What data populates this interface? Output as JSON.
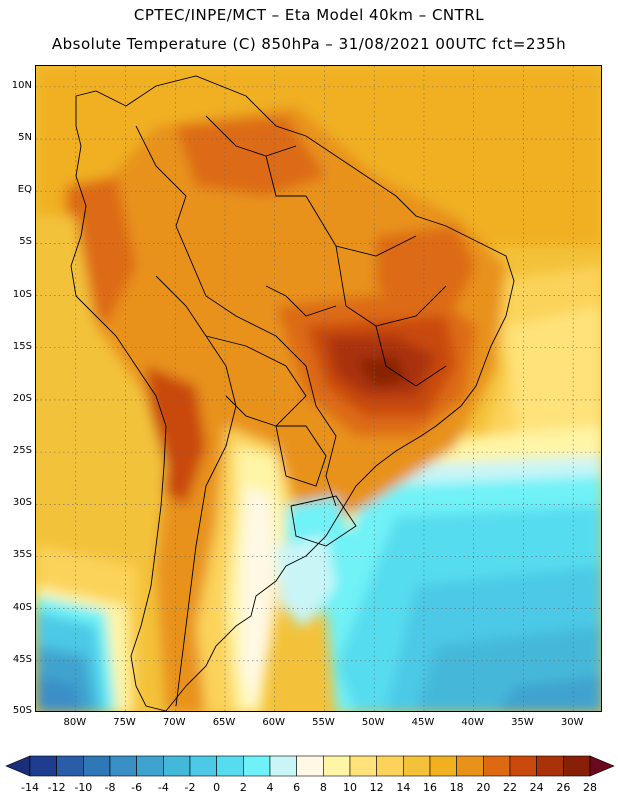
{
  "title_line1": "CPTEC/INPE/MCT –  Eta Model 40km – CNTRL",
  "title_line2": "Absolute Temperature (C) 850hPa – 31/08/2021 00UTC fct=235h",
  "map": {
    "lon_range": [
      -84,
      -27
    ],
    "lat_range": [
      -50,
      12
    ],
    "lat_labels": [
      "10N",
      "5N",
      "EQ",
      "5S",
      "10S",
      "15S",
      "20S",
      "25S",
      "30S",
      "35S",
      "40S",
      "45S",
      "50S"
    ],
    "lat_values": [
      10,
      5,
      0,
      -5,
      -10,
      -15,
      -20,
      -25,
      -30,
      -35,
      -40,
      -45,
      -50
    ],
    "lon_labels": [
      "80W",
      "75W",
      "70W",
      "65W",
      "60W",
      "55W",
      "50W",
      "45W",
      "40W",
      "35W",
      "30W"
    ],
    "lon_values": [
      -80,
      -75,
      -70,
      -65,
      -60,
      -55,
      -50,
      -45,
      -40,
      -35,
      -30
    ]
  },
  "colorbar": {
    "labels": [
      "-14",
      "-12",
      "-10",
      "-8",
      "-6",
      "-4",
      "-2",
      "0",
      "2",
      "4",
      "6",
      "8",
      "10",
      "12",
      "14",
      "16",
      "18",
      "20",
      "22",
      "24",
      "26",
      "28"
    ],
    "colors": [
      "#1f3d8f",
      "#2a5da8",
      "#2f78b8",
      "#3a8fc6",
      "#3fa3cf",
      "#44b8d9",
      "#4cc9e6",
      "#57dcef",
      "#6ff2f7",
      "#c9f5f7",
      "#fff8e4",
      "#fff5a6",
      "#ffe27a",
      "#fbd35a",
      "#f3c23a",
      "#f0b020",
      "#e8921c",
      "#dd6a12",
      "#c94a0c",
      "#a93208",
      "#872006"
    ],
    "low_color": "#1a2e7a",
    "high_color": "#6b0a1e"
  }
}
